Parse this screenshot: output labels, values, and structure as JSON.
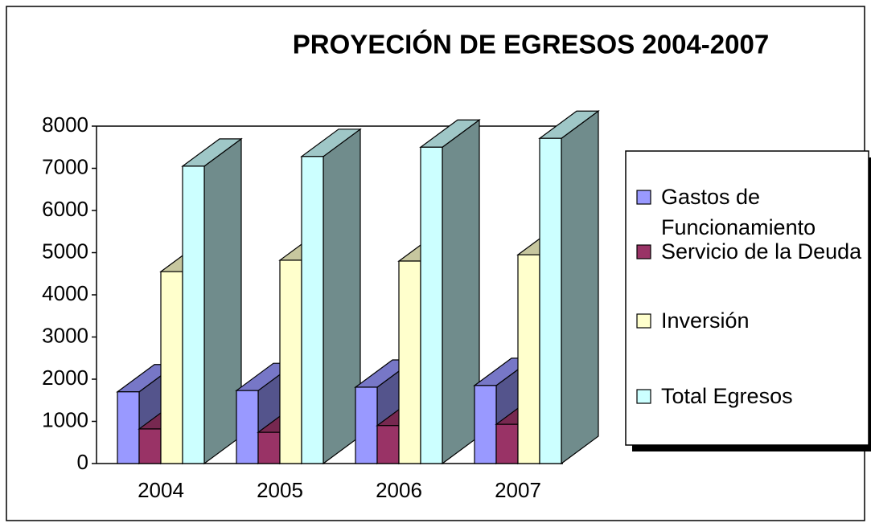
{
  "chart_data": {
    "type": "bar3d",
    "title": "PROYECIÓN DE EGRESOS 2004-2007",
    "categories": [
      "2004",
      "2005",
      "2006",
      "2007"
    ],
    "series": [
      {
        "name": "Gastos de Funcionamiento",
        "color": "#9999ff",
        "values": [
          1700,
          1730,
          1810,
          1850
        ]
      },
      {
        "name": "Servicio de la Deuda",
        "color": "#993366",
        "values": [
          820,
          740,
          900,
          930
        ]
      },
      {
        "name": "Inversión",
        "color": "#ffffcc",
        "values": [
          4550,
          4820,
          4800,
          4950
        ]
      },
      {
        "name": "Total Egresos",
        "color": "#ccffff",
        "values": [
          7050,
          7280,
          7500,
          7710
        ]
      }
    ],
    "ylim": [
      0,
      8000
    ],
    "yticks": [
      0,
      1000,
      2000,
      3000,
      4000,
      5000,
      6000,
      7000,
      8000
    ],
    "legend": "right"
  }
}
